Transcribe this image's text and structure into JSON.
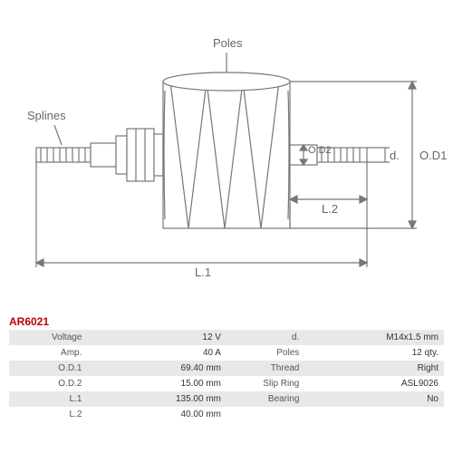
{
  "part_code": "AR6021",
  "labels": {
    "splines": "Splines",
    "poles": "Poles",
    "od1": "O.D1",
    "od2": "O.D2",
    "d": "d.",
    "l1": "L.1",
    "l2": "L.2"
  },
  "colors": {
    "stroke": "#777777",
    "fill": "#ffffff",
    "bg": "#ffffff",
    "code": "#b00000",
    "row_alt": "#e8e8e8"
  },
  "specs_left": [
    {
      "k": "Voltage",
      "v": "12 V"
    },
    {
      "k": "Amp.",
      "v": "40 A"
    },
    {
      "k": "O.D.1",
      "v": "69.40 mm"
    },
    {
      "k": "O.D.2",
      "v": "15.00 mm"
    },
    {
      "k": "L.1",
      "v": "135.00 mm"
    },
    {
      "k": "L.2",
      "v": "40.00 mm"
    }
  ],
  "specs_right": [
    {
      "k": "d.",
      "v": "M14x1.5 mm"
    },
    {
      "k": "Poles",
      "v": "12 qty."
    },
    {
      "k": "Thread",
      "v": "Right"
    },
    {
      "k": "Slip Ring",
      "v": "ASL9026"
    },
    {
      "k": "Bearing",
      "v": "No"
    },
    {
      "k": "",
      "v": ""
    }
  ]
}
